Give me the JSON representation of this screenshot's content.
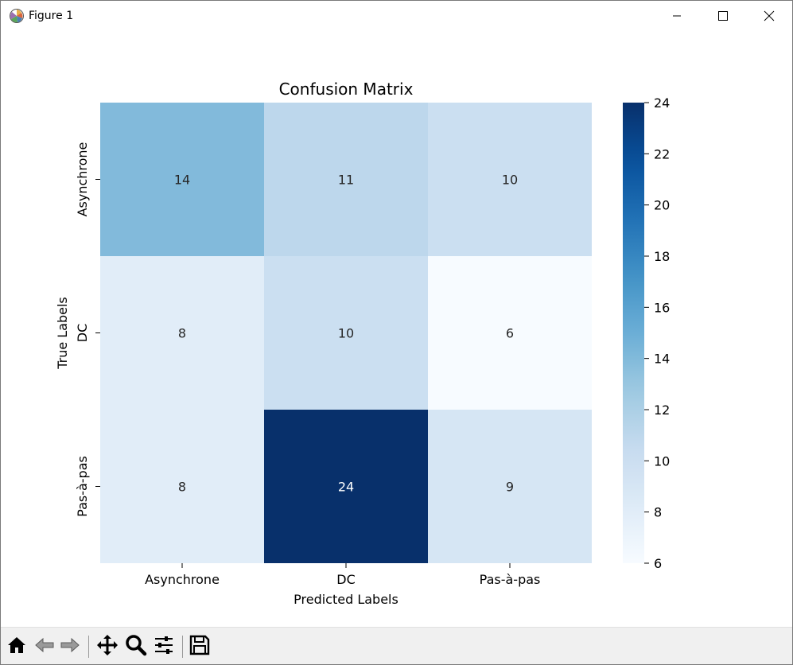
{
  "window": {
    "title": "Figure 1",
    "icons": [
      "matplotlib-icon",
      "minimize-icon",
      "maximize-icon",
      "close-icon"
    ]
  },
  "toolbar": {
    "buttons": [
      "home-icon",
      "back-icon",
      "forward-icon",
      "pan-icon",
      "zoom-icon",
      "configure-subplots-icon",
      "save-icon"
    ]
  },
  "chart_data": {
    "type": "heatmap",
    "title": "Confusion Matrix",
    "xlabel": "Predicted Labels",
    "ylabel": "True Labels",
    "x_categories": [
      "Asynchrone",
      "DC",
      "Pas-à-pas"
    ],
    "y_categories": [
      "Asynchrone",
      "DC",
      "Pas-à-pas"
    ],
    "values": [
      [
        14,
        11,
        10
      ],
      [
        8,
        10,
        6
      ],
      [
        8,
        24,
        9
      ]
    ],
    "colormap": "Blues",
    "colorbar": {
      "min": 6,
      "max": 24,
      "ticks": [
        6,
        8,
        10,
        12,
        14,
        16,
        18,
        20,
        22,
        24
      ]
    },
    "annotations": true,
    "grid": false
  }
}
